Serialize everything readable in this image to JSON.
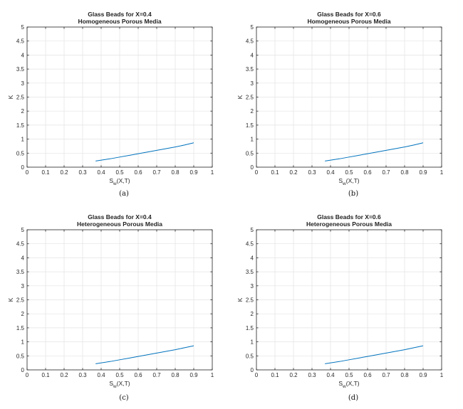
{
  "chart_data": [
    {
      "type": "line",
      "title": "Glass Beads for X=0.4",
      "subtitle": "Homogeneous Porous Media",
      "xlabel_main": "S",
      "xlabel_sub": "w",
      "xlabel_rest": "(X,T)",
      "ylabel": "K",
      "xlim": [
        0,
        1
      ],
      "ylim": [
        0,
        5
      ],
      "xticks": [
        "0",
        "0.1",
        "0.2",
        "0.3",
        "0.4",
        "0.5",
        "0.6",
        "0.7",
        "0.8",
        "0.9",
        "1"
      ],
      "yticks": [
        "0",
        "0.5",
        "1",
        "1.5",
        "2",
        "2.5",
        "3",
        "3.5",
        "4",
        "4.5",
        "5"
      ],
      "grid": true,
      "caption": "(a)",
      "series": [
        {
          "color": "#0072BD",
          "x": [
            0.37,
            0.45,
            0.5,
            0.55,
            0.6,
            0.65,
            0.7,
            0.75,
            0.8,
            0.85,
            0.9
          ],
          "y": [
            0.22,
            0.3,
            0.36,
            0.42,
            0.48,
            0.54,
            0.6,
            0.66,
            0.72,
            0.79,
            0.87
          ]
        }
      ]
    },
    {
      "type": "line",
      "title": "Glass Beads for X=0.6",
      "subtitle": "Homogeneous Porous Media",
      "xlabel_main": "S",
      "xlabel_sub": "w",
      "xlabel_rest": "(X,T)",
      "ylabel": "K",
      "xlim": [
        0,
        1
      ],
      "ylim": [
        0,
        5
      ],
      "xticks": [
        "0",
        "0.1",
        "0.2",
        "0.3",
        "0.4",
        "0.5",
        "0.6",
        "0.7",
        "0.8",
        "0.9",
        "1"
      ],
      "yticks": [
        "0",
        "0.5",
        "1",
        "1.5",
        "2",
        "2.5",
        "3",
        "3.5",
        "4",
        "4.5",
        "5"
      ],
      "grid": true,
      "caption": "(b)",
      "series": [
        {
          "color": "#0072BD",
          "x": [
            0.37,
            0.45,
            0.5,
            0.55,
            0.6,
            0.65,
            0.7,
            0.75,
            0.8,
            0.85,
            0.9
          ],
          "y": [
            0.22,
            0.3,
            0.36,
            0.42,
            0.48,
            0.54,
            0.6,
            0.66,
            0.72,
            0.79,
            0.87
          ]
        }
      ]
    },
    {
      "type": "line",
      "title": "Glass Beads for X=0.4",
      "subtitle": "Heterogeneous Porous Media",
      "xlabel_main": "S",
      "xlabel_sub": "w",
      "xlabel_rest": "(X,T)",
      "ylabel": "K",
      "xlim": [
        0,
        1
      ],
      "ylim": [
        0,
        5
      ],
      "xticks": [
        "0",
        "0.1",
        "0.2",
        "0.3",
        "0.4",
        "0.5",
        "0.6",
        "0.7",
        "0.8",
        "0.9",
        "1"
      ],
      "yticks": [
        "0",
        "0.5",
        "1",
        "1.5",
        "2",
        "2.5",
        "3",
        "3.5",
        "4",
        "4.5",
        "5"
      ],
      "grid": true,
      "caption": "(c)",
      "series": [
        {
          "color": "#0072BD",
          "x": [
            0.37,
            0.45,
            0.5,
            0.55,
            0.6,
            0.65,
            0.7,
            0.75,
            0.8,
            0.85,
            0.9
          ],
          "y": [
            0.22,
            0.3,
            0.36,
            0.42,
            0.48,
            0.54,
            0.6,
            0.66,
            0.72,
            0.79,
            0.86
          ]
        }
      ]
    },
    {
      "type": "line",
      "title": "Glass Beads for X=0.6",
      "subtitle": "Heterogeneous Porous Media",
      "xlabel_main": "S",
      "xlabel_sub": "w",
      "xlabel_rest": "(X,T)",
      "ylabel": "K",
      "xlim": [
        0,
        1
      ],
      "ylim": [
        0,
        5
      ],
      "xticks": [
        "0",
        "0.1",
        "0.2",
        "0.3",
        "0.4",
        "0.5",
        "0.6",
        "0.7",
        "0.8",
        "0.9",
        "1"
      ],
      "yticks": [
        "0",
        "0.5",
        "1",
        "1.5",
        "2",
        "2.5",
        "3",
        "3.5",
        "4",
        "4.5",
        "5"
      ],
      "grid": true,
      "caption": "(d)",
      "series": [
        {
          "color": "#0072BD",
          "x": [
            0.37,
            0.45,
            0.5,
            0.55,
            0.6,
            0.65,
            0.7,
            0.75,
            0.8,
            0.85,
            0.9
          ],
          "y": [
            0.22,
            0.3,
            0.36,
            0.42,
            0.48,
            0.54,
            0.6,
            0.66,
            0.72,
            0.79,
            0.86
          ]
        }
      ]
    }
  ]
}
